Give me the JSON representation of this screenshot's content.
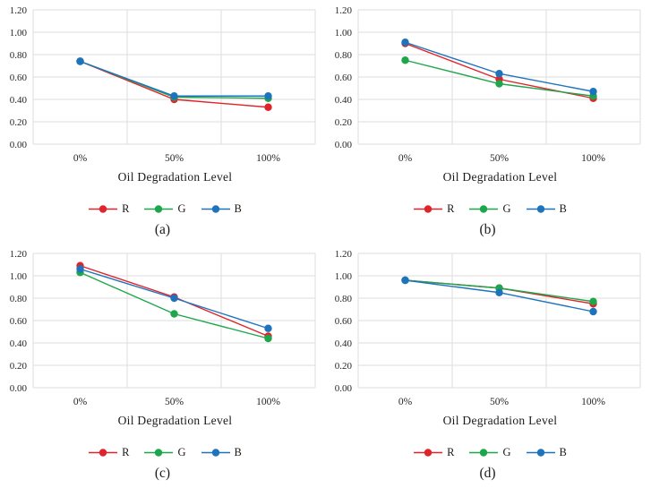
{
  "page": {
    "background": "#ffffff"
  },
  "styles": {
    "grid_color": "#dedede",
    "text_color": "#262626",
    "series_colors": {
      "R": "#e0242b",
      "G": "#1ea64c",
      "B": "#1e73bd"
    }
  },
  "chart_data": [
    {
      "id": "a",
      "type": "line",
      "caption": "(a)",
      "xlabel": "Oil Degradation Level",
      "categories": [
        "0%",
        "50%",
        "100%"
      ],
      "ylim": [
        0.0,
        1.2
      ],
      "ytick_step": 0.2,
      "yticks": [
        "0.00",
        "0.20",
        "0.40",
        "0.60",
        "0.80",
        "1.00",
        "1.20"
      ],
      "grid": true,
      "legend_position": "bottom",
      "series": [
        {
          "name": "R",
          "color": "#e0242b",
          "values": [
            0.74,
            0.4,
            0.33
          ]
        },
        {
          "name": "G",
          "color": "#1ea64c",
          "values": [
            0.74,
            0.42,
            0.41
          ]
        },
        {
          "name": "B",
          "color": "#1e73bd",
          "values": [
            0.74,
            0.43,
            0.43
          ]
        }
      ]
    },
    {
      "id": "b",
      "type": "line",
      "caption": "(b)",
      "xlabel": "Oil Degradation Level",
      "categories": [
        "0%",
        "50%",
        "100%"
      ],
      "ylim": [
        0.0,
        1.2
      ],
      "ytick_step": 0.2,
      "yticks": [
        "0.00",
        "0.20",
        "0.40",
        "0.60",
        "0.80",
        "1.00",
        "1.20"
      ],
      "grid": true,
      "legend_position": "bottom",
      "series": [
        {
          "name": "R",
          "color": "#e0242b",
          "values": [
            0.9,
            0.58,
            0.41
          ]
        },
        {
          "name": "G",
          "color": "#1ea64c",
          "values": [
            0.75,
            0.54,
            0.43
          ]
        },
        {
          "name": "B",
          "color": "#1e73bd",
          "values": [
            0.91,
            0.63,
            0.47
          ]
        }
      ]
    },
    {
      "id": "c",
      "type": "line",
      "caption": "(c)",
      "xlabel": "Oil Degradation Level",
      "categories": [
        "0%",
        "50%",
        "100%"
      ],
      "ylim": [
        0.0,
        1.2
      ],
      "ytick_step": 0.2,
      "yticks": [
        "0.00",
        "0.20",
        "0.40",
        "0.60",
        "0.80",
        "1.00",
        "1.20"
      ],
      "grid": true,
      "legend_position": "bottom",
      "series": [
        {
          "name": "R",
          "color": "#e0242b",
          "values": [
            1.09,
            0.81,
            0.46
          ]
        },
        {
          "name": "G",
          "color": "#1ea64c",
          "values": [
            1.03,
            0.66,
            0.44
          ]
        },
        {
          "name": "B",
          "color": "#1e73bd",
          "values": [
            1.06,
            0.8,
            0.53
          ]
        }
      ]
    },
    {
      "id": "d",
      "type": "line",
      "caption": "(d)",
      "xlabel": "Oil Degradation Level",
      "categories": [
        "0%",
        "50%",
        "100%"
      ],
      "ylim": [
        0.0,
        1.2
      ],
      "ytick_step": 0.2,
      "yticks": [
        "0.00",
        "0.20",
        "0.40",
        "0.60",
        "0.80",
        "1.00",
        "1.20"
      ],
      "grid": true,
      "legend_position": "bottom",
      "series": [
        {
          "name": "R",
          "color": "#e0242b",
          "values": [
            0.96,
            0.89,
            0.75
          ]
        },
        {
          "name": "G",
          "color": "#1ea64c",
          "values": [
            0.96,
            0.89,
            0.77
          ]
        },
        {
          "name": "B",
          "color": "#1e73bd",
          "values": [
            0.96,
            0.85,
            0.68
          ]
        }
      ]
    }
  ]
}
